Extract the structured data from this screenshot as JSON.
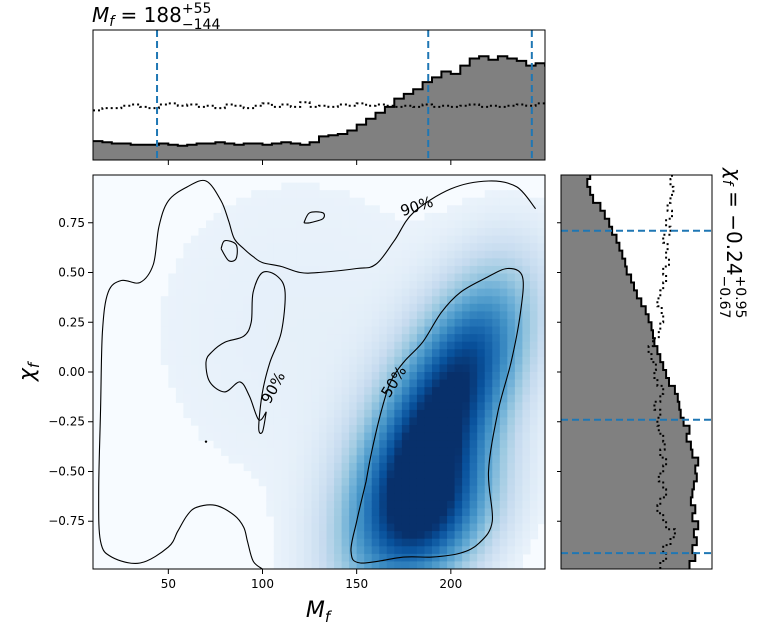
{
  "chart_data": [
    {
      "type": "heatmap",
      "panel": "joint",
      "xlabel_base": "M",
      "xlabel_sub": "f",
      "ylabel_base": "χ",
      "ylabel_sub": "f",
      "xlim": [
        10,
        250
      ],
      "ylim": [
        -0.99,
        0.99
      ],
      "xticks": [
        50,
        100,
        150,
        200
      ],
      "xtick_labels": [
        "50",
        "100",
        "150",
        "200"
      ],
      "yticks": [
        -0.75,
        -0.5,
        -0.25,
        0.0,
        0.25,
        0.5,
        0.75
      ],
      "ytick_labels": [
        "−0.75",
        "−0.50",
        "−0.25",
        "0.00",
        "0.25",
        "0.50",
        "0.75"
      ],
      "colormap": [
        "#f7fbff",
        "#deebf7",
        "#c6dbef",
        "#9ecae1",
        "#6baed6",
        "#4292c6",
        "#2171b5",
        "#08519c",
        "#08306b"
      ],
      "density_peak": {
        "x": 185,
        "y": -0.4
      },
      "contours": [
        {
          "label": "90%",
          "label_pos": [
            182,
            0.83
          ],
          "path": [
            [
              245,
              0.82
            ],
            [
              235,
              0.93
            ],
            [
              220,
              0.96
            ],
            [
              200,
              0.92
            ],
            [
              180,
              0.8
            ],
            [
              170,
              0.66
            ],
            [
              160,
              0.54
            ],
            [
              150,
              0.52
            ],
            [
              130,
              0.5
            ],
            [
              120,
              0.5
            ],
            [
              110,
              0.53
            ],
            [
              100,
              0.55
            ],
            [
              95,
              0.58
            ],
            [
              90,
              0.62
            ],
            [
              85,
              0.67
            ],
            [
              82,
              0.76
            ],
            [
              78,
              0.86
            ],
            [
              70,
              0.96
            ],
            [
              60,
              0.93
            ],
            [
              50,
              0.86
            ],
            [
              45,
              0.73
            ],
            [
              42,
              0.54
            ],
            [
              35,
              0.45
            ],
            [
              25,
              0.46
            ],
            [
              18,
              0.4
            ],
            [
              15,
              0.2
            ],
            [
              14,
              -0.2
            ],
            [
              13,
              -0.6
            ],
            [
              14,
              -0.85
            ],
            [
              20,
              -0.93
            ],
            [
              35,
              -0.96
            ],
            [
              50,
              -0.88
            ],
            [
              55,
              -0.8
            ],
            [
              60,
              -0.72
            ],
            [
              65,
              -0.68
            ],
            [
              75,
              -0.67
            ],
            [
              85,
              -0.72
            ],
            [
              90,
              -0.78
            ],
            [
              92,
              -0.85
            ],
            [
              95,
              -0.95
            ],
            [
              100,
              -0.99
            ]
          ]
        },
        {
          "label": "90%",
          "label_pos": [
            106,
            -0.08
          ],
          "path": [
            [
              102,
              -0.2
            ],
            [
              100,
              -0.3
            ],
            [
              98,
              -0.28
            ],
            [
              100,
              -0.1
            ],
            [
              104,
              0.05
            ],
            [
              110,
              0.2
            ],
            [
              112,
              0.4
            ],
            [
              108,
              0.48
            ],
            [
              100,
              0.5
            ],
            [
              95,
              0.4
            ],
            [
              94,
              0.25
            ],
            [
              90,
              0.18
            ],
            [
              80,
              0.15
            ],
            [
              73,
              0.1
            ],
            [
              70,
              0.05
            ],
            [
              72,
              -0.05
            ],
            [
              80,
              -0.1
            ],
            [
              88,
              -0.05
            ],
            [
              93,
              -0.12
            ],
            [
              98,
              -0.24
            ],
            [
              102,
              -0.2
            ]
          ]
        },
        {
          "label": "",
          "path": [
            [
              122,
              0.75
            ],
            [
              125,
              0.8
            ],
            [
              132,
              0.8
            ],
            [
              132,
              0.77
            ],
            [
              125,
              0.75
            ],
            [
              122,
              0.75
            ]
          ]
        },
        {
          "label": "",
          "path": [
            [
              78,
              0.62
            ],
            [
              80,
              0.66
            ],
            [
              86,
              0.64
            ],
            [
              86,
              0.57
            ],
            [
              82,
              0.56
            ],
            [
              78,
              0.62
            ]
          ]
        },
        {
          "label": "50%",
          "label_pos": [
            170,
            -0.05
          ],
          "path": [
            [
              155,
              -0.55
            ],
            [
              150,
              -0.75
            ],
            [
              147,
              -0.9
            ],
            [
              152,
              -0.96
            ],
            [
              175,
              -0.93
            ],
            [
              190,
              -0.93
            ],
            [
              205,
              -0.91
            ],
            [
              215,
              -0.86
            ],
            [
              222,
              -0.75
            ],
            [
              220,
              -0.5
            ],
            [
              225,
              -0.2
            ],
            [
              232,
              0.05
            ],
            [
              237,
              0.3
            ],
            [
              238,
              0.48
            ],
            [
              230,
              0.52
            ],
            [
              218,
              0.47
            ],
            [
              205,
              0.4
            ],
            [
              195,
              0.3
            ],
            [
              185,
              0.15
            ],
            [
              175,
              0.05
            ],
            [
              168,
              -0.05
            ],
            [
              163,
              -0.2
            ],
            [
              158,
              -0.4
            ],
            [
              155,
              -0.55
            ]
          ]
        }
      ],
      "outlier_point": {
        "x": 70,
        "y": -0.35
      }
    },
    {
      "type": "area",
      "panel": "top-marginal",
      "title_base": "M",
      "title_sub": "f",
      "title_eq": " = 188",
      "title_sup": "+55",
      "title_low": "−144",
      "xlim": [
        10,
        250
      ],
      "bin_edges_start": 10,
      "bin_width": 5,
      "posterior_values": [
        0.16,
        0.15,
        0.14,
        0.14,
        0.13,
        0.13,
        0.13,
        0.14,
        0.13,
        0.12,
        0.13,
        0.14,
        0.14,
        0.15,
        0.14,
        0.13,
        0.14,
        0.14,
        0.13,
        0.14,
        0.15,
        0.14,
        0.13,
        0.15,
        0.2,
        0.21,
        0.22,
        0.25,
        0.3,
        0.35,
        0.4,
        0.45,
        0.52,
        0.56,
        0.6,
        0.66,
        0.7,
        0.75,
        0.73,
        0.8,
        0.86,
        0.88,
        0.85,
        0.88,
        0.86,
        0.84,
        0.8,
        0.82,
        0.8
      ],
      "prior_values": [
        0.42,
        0.44,
        0.44,
        0.46,
        0.47,
        0.45,
        0.44,
        0.47,
        0.48,
        0.46,
        0.47,
        0.45,
        0.46,
        0.44,
        0.47,
        0.46,
        0.44,
        0.46,
        0.48,
        0.45,
        0.47,
        0.45,
        0.49,
        0.45,
        0.46,
        0.45,
        0.47,
        0.46,
        0.48,
        0.46,
        0.47,
        0.46,
        0.45,
        0.46,
        0.45,
        0.47,
        0.45,
        0.46,
        0.45,
        0.46,
        0.47,
        0.45,
        0.46,
        0.45,
        0.46,
        0.47,
        0.46,
        0.48,
        0.49
      ],
      "quantile_lines": [
        44,
        188,
        243
      ],
      "xticks": [
        50,
        100,
        150,
        200
      ],
      "fill_color": "#808080",
      "line_color": "#1f77b4"
    },
    {
      "type": "area",
      "panel": "right-marginal",
      "title_base": "χ",
      "title_sub": "f",
      "title_eq": " = −0.24",
      "title_sup": "+0.95",
      "title_low": "−0.67",
      "ylim": [
        -0.99,
        0.99
      ],
      "bin_edges_start": -0.99,
      "bin_width": 0.04,
      "posterior_values": [
        0.88,
        0.92,
        0.9,
        0.93,
        0.91,
        0.94,
        0.9,
        0.92,
        0.89,
        0.9,
        0.91,
        0.93,
        0.92,
        0.94,
        0.9,
        0.89,
        0.86,
        0.88,
        0.84,
        0.82,
        0.81,
        0.8,
        0.78,
        0.74,
        0.72,
        0.7,
        0.68,
        0.66,
        0.64,
        0.63,
        0.62,
        0.6,
        0.58,
        0.55,
        0.52,
        0.5,
        0.48,
        0.45,
        0.44,
        0.42,
        0.4,
        0.38,
        0.35,
        0.33,
        0.3,
        0.27,
        0.22,
        0.2,
        0.18,
        0.2
      ],
      "prior_values": [
        0.68,
        0.72,
        0.7,
        0.75,
        0.78,
        0.72,
        0.7,
        0.66,
        0.68,
        0.72,
        0.7,
        0.67,
        0.7,
        0.72,
        0.68,
        0.71,
        0.7,
        0.67,
        0.66,
        0.68,
        0.64,
        0.68,
        0.7,
        0.66,
        0.64,
        0.65,
        0.62,
        0.6,
        0.63,
        0.67,
        0.68,
        0.7,
        0.69,
        0.66,
        0.68,
        0.7,
        0.72,
        0.7,
        0.74,
        0.72,
        0.73,
        0.7,
        0.75,
        0.72,
        0.76,
        0.73,
        0.75,
        0.77,
        0.75,
        0.76
      ],
      "quantile_lines": [
        -0.91,
        -0.24,
        0.71
      ],
      "fill_color": "#808080",
      "line_color": "#1f77b4"
    }
  ]
}
